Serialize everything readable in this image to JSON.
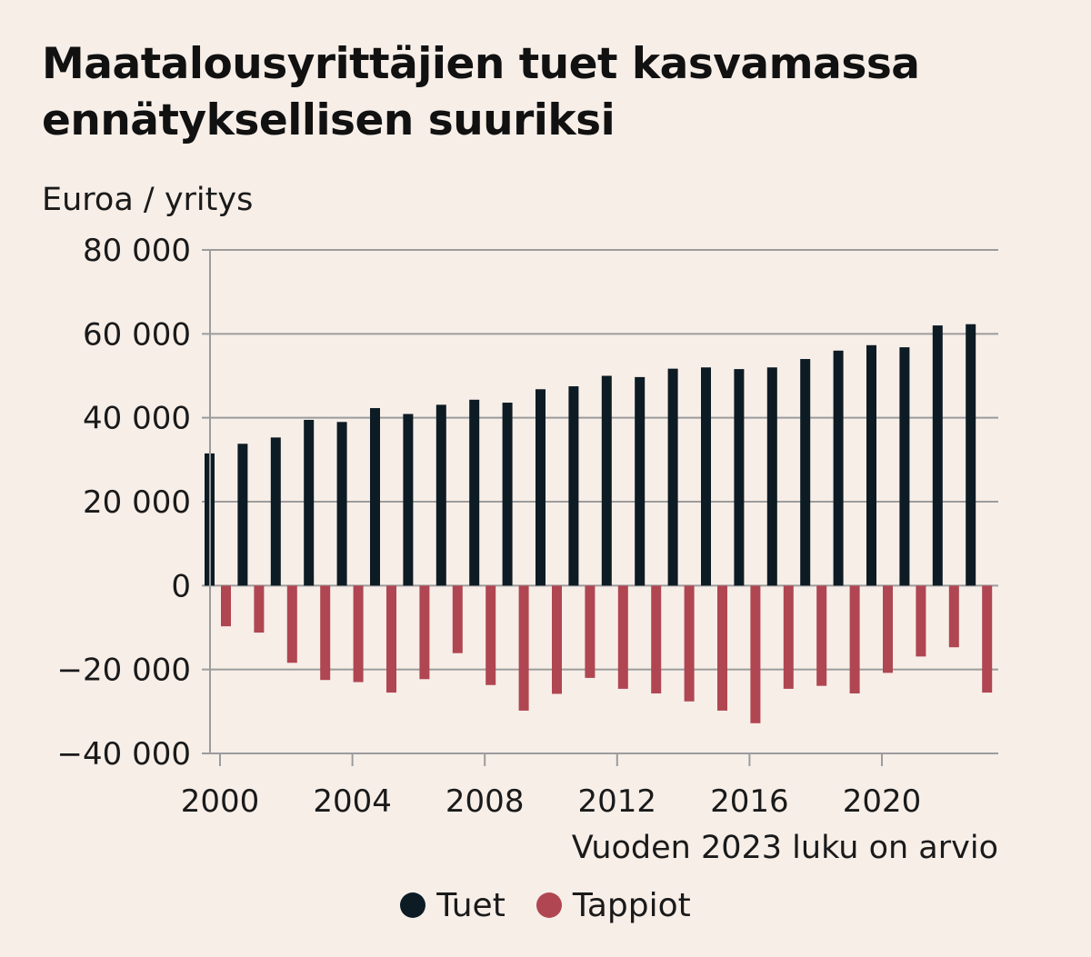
{
  "header": {
    "title_line1": "Maatalousyrittäjien tuet kasvamassa",
    "title_line2": "ennätyksellisen suuriksi"
  },
  "colors": {
    "background": "#f7eee8",
    "tuet": "#0d1b24",
    "tappiot": "#b04651",
    "grid": "#9c9c9c",
    "text": "#1a1a1a"
  },
  "chart_data": {
    "type": "bar",
    "ylabel": "Euroa / yritys",
    "note": "Vuoden 2023 luku on arvio",
    "ylim": [
      -40000,
      80000
    ],
    "y_ticks": [
      80000,
      60000,
      40000,
      20000,
      0,
      -20000,
      -40000
    ],
    "y_tick_labels": [
      "80 000",
      "60 000",
      "40 000",
      "20 000",
      "0",
      "−20 000",
      "−40 000"
    ],
    "x_ticks": [
      2000,
      2004,
      2008,
      2012,
      2016,
      2020
    ],
    "x_tick_labels": [
      "2000",
      "2004",
      "2008",
      "2012",
      "2016",
      "2020"
    ],
    "grid": "horizontal",
    "legend_position": "bottom",
    "categories": [
      2000,
      2001,
      2002,
      2003,
      2004,
      2005,
      2006,
      2007,
      2008,
      2009,
      2010,
      2011,
      2012,
      2013,
      2014,
      2015,
      2016,
      2017,
      2018,
      2019,
      2020,
      2021,
      2022,
      2023
    ],
    "series": [
      {
        "name": "Tuet",
        "color": "#0d1b24",
        "values": [
          31500,
          33800,
          35300,
          39500,
          39000,
          42300,
          40900,
          43100,
          44300,
          43600,
          46800,
          47500,
          50000,
          49700,
          51700,
          52000,
          51600,
          52000,
          54000,
          56000,
          57300,
          56800,
          62000,
          62300
        ]
      },
      {
        "name": "Tappiot",
        "color": "#b04651",
        "values": [
          -9700,
          -11200,
          -18400,
          -22500,
          -23000,
          -25500,
          -22300,
          -16100,
          -23700,
          -29800,
          -25800,
          -22000,
          -24600,
          -25700,
          -27600,
          -29800,
          -32800,
          -24600,
          -23900,
          -25700,
          -20800,
          -16900,
          -14700,
          -25500
        ]
      }
    ]
  }
}
